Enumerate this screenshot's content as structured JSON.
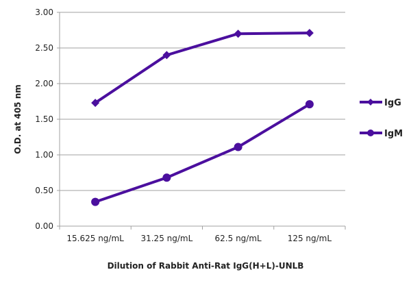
{
  "chart_data": {
    "type": "line",
    "title": "",
    "xlabel": "Dilution of Rabbit Anti-Rat IgG(H+L)-UNLB",
    "ylabel": "O.D. at 405 nm",
    "categories": [
      "15.625 ng/mL",
      "31.25 ng/mL",
      "62.5 ng/mL",
      "125 ng/mL"
    ],
    "ylim": [
      0,
      3
    ],
    "yticks": [
      "0.00",
      "0.50",
      "1.00",
      "1.50",
      "2.00",
      "2.50",
      "3.00"
    ],
    "grid": true,
    "legend_position": "right",
    "series": [
      {
        "name": "IgG",
        "marker": "diamond",
        "color": "#4b0f9e",
        "values": [
          1.73,
          2.4,
          2.7,
          2.71
        ]
      },
      {
        "name": "IgM",
        "marker": "circle",
        "color": "#4b0f9e",
        "values": [
          0.34,
          0.68,
          1.11,
          1.71
        ]
      }
    ]
  }
}
